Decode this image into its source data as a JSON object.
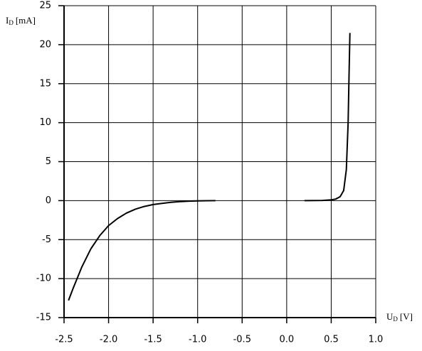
{
  "chart_data": {
    "type": "line",
    "y_label": {
      "symbol": "I",
      "subscript": "D",
      "unit": "[mA]"
    },
    "x_label": {
      "symbol": "U",
      "subscript": "D",
      "unit": "[V]"
    },
    "series": [
      {
        "color": "#000000",
        "x": [
          -2.45,
          -2.4,
          -2.3,
          -2.2,
          -2.1,
          -2.0,
          -1.9,
          -1.8,
          -1.7,
          -1.6,
          -1.5,
          -1.4,
          -1.3,
          -1.2,
          -1.1,
          -1.0,
          -0.9,
          -0.8
        ],
        "values": [
          -12.8,
          -11.3,
          -8.5,
          -6.2,
          -4.5,
          -3.2,
          -2.3,
          -1.6,
          -1.1,
          -0.75,
          -0.5,
          -0.35,
          -0.22,
          -0.13,
          -0.07,
          -0.03,
          -0.01,
          0
        ]
      },
      {
        "color": "#000000",
        "x": [
          0.2,
          0.4,
          0.5,
          0.55,
          0.6,
          0.64,
          0.67,
          0.69,
          0.7,
          0.71
        ],
        "values": [
          0,
          0.02,
          0.1,
          0.2,
          0.5,
          1.3,
          4,
          10,
          16,
          21.5
        ]
      }
    ],
    "xlim": [
      -2.5,
      1.0
    ],
    "xticks": [
      -2.5,
      {
        "value": -2,
        "label": "-2.0"
      },
      -1.5,
      {
        "value": -1,
        "label": "-1.0"
      },
      -0.5,
      {
        "value": 0,
        "label": "0.0"
      },
      0.5,
      {
        "value": 1,
        "label": "1.0"
      }
    ],
    "ylim": [
      -15,
      25
    ],
    "yticks": [
      -15,
      -10,
      -5,
      0,
      5,
      10,
      15,
      20,
      25
    ],
    "grid": true
  }
}
